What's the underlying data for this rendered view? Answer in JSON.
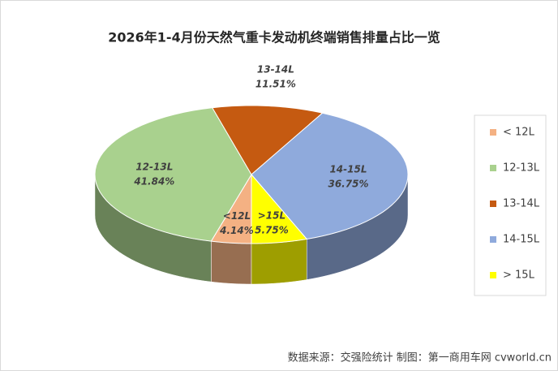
{
  "chart_data": {
    "type": "pie",
    "title": "2026年1-4月份天然气重卡发动机终端销售排量占比一览",
    "categories": [
      "< 12L",
      "12-13L",
      "13-14L",
      "14-15L",
      "> 15L"
    ],
    "slice_labels": [
      "<12L",
      "12-13L",
      "13-14L",
      "14-15L",
      ">15L"
    ],
    "values": [
      4.14,
      41.84,
      11.51,
      36.75,
      5.75
    ],
    "value_labels": [
      "4.14%",
      "41.84%",
      "11.51%",
      "36.75%",
      "5.75%"
    ],
    "colors": [
      "#f4b183",
      "#a9d18e",
      "#c55a11",
      "#8faadc",
      "#ffff00"
    ],
    "legend": "right",
    "source": "数据来源：交强险统计  制图：第一商用车网 cvworld.cn"
  }
}
